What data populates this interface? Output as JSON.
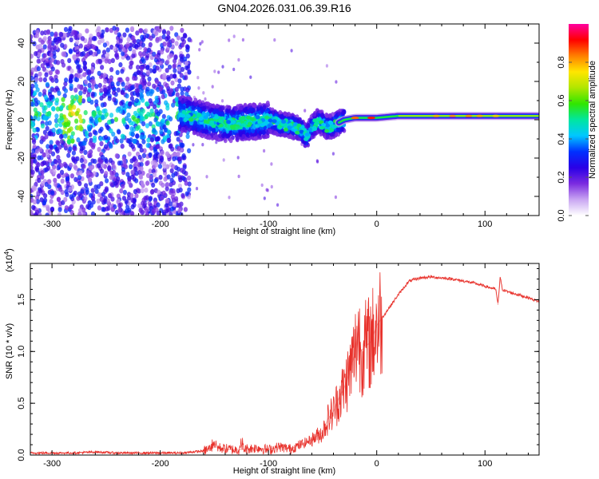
{
  "title": "GN04.2026.031.06.39.R16",
  "chart_data": [
    {
      "type": "heatmap",
      "name": "spectrogram",
      "title": "GN04.2026.031.06.39.R16",
      "xlabel": "Height of straight line (km)",
      "ylabel": "Frequency (Hz)",
      "xlim": [
        -320,
        150
      ],
      "ylim": [
        -50,
        50
      ],
      "x_ticks": [
        -300,
        -200,
        -100,
        0,
        100
      ],
      "x_tick_labels": [
        "-300",
        "-200",
        "-100",
        "0",
        "100"
      ],
      "y_ticks": [
        -40,
        -20,
        0,
        20,
        40
      ],
      "y_tick_labels": [
        "-40",
        "-20",
        "0",
        "20",
        "40"
      ],
      "ridge": {
        "description": "dominant frequency line of the signal, in Hz, vs height in km",
        "x": [
          -285,
          -270,
          -250,
          -230,
          -200,
          -180,
          -170,
          -160,
          -150,
          -140,
          -130,
          -120,
          -110,
          -100,
          -90,
          -80,
          -70,
          -65,
          -60,
          -55,
          -50,
          -45,
          -40,
          -30,
          -20,
          -10,
          0,
          20,
          40,
          60,
          80,
          100,
          120,
          150
        ],
        "y": [
          3,
          2,
          1,
          0,
          0,
          3,
          2,
          0,
          -1,
          -2,
          -2,
          -1,
          -1,
          0,
          -2,
          -3,
          -5,
          -9,
          -4,
          -1,
          -2,
          -4,
          -3,
          0,
          1,
          1,
          1,
          2,
          2,
          2,
          2,
          2,
          2,
          2
        ]
      },
      "colorbar": {
        "label": "Normalized spectral amplitude",
        "range": [
          0.0,
          1.0
        ],
        "ticks": [
          0.0,
          0.2,
          0.4,
          0.6,
          0.8
        ],
        "tick_labels": [
          "0.0",
          "0.2",
          "0.4",
          "0.6",
          "0.8"
        ],
        "colormap": [
          "#ffffff",
          "#c9a6f2",
          "#7b2be0",
          "#2a00e6",
          "#0030ff",
          "#00c8ff",
          "#00e6a0",
          "#30e600",
          "#b0e600",
          "#ffe600",
          "#ff8000",
          "#ff0000",
          "#ff00a0"
        ]
      }
    },
    {
      "type": "line",
      "name": "snr",
      "xlabel": "Height of straight line (km)",
      "ylabel": "SNR (10 * v/v)",
      "y_multiplier": "(x10",
      "y_multiplier_exponent": "4",
      "y_multiplier_close": ")",
      "xlim": [
        -320,
        150
      ],
      "ylim": [
        0,
        1.85
      ],
      "x_ticks": [
        -300,
        -200,
        -100,
        0,
        100
      ],
      "x_tick_labels": [
        "-300",
        "-200",
        "-100",
        "0",
        "100"
      ],
      "y_ticks": [
        0.0,
        0.5,
        1.0,
        1.5
      ],
      "y_tick_labels": [
        "0.0",
        "0.5",
        "1.0",
        "1.5"
      ],
      "color": "#e8302a",
      "series": [
        {
          "name": "SNR",
          "x": [
            -320,
            -300,
            -280,
            -260,
            -240,
            -220,
            -200,
            -180,
            -160,
            -150,
            -140,
            -130,
            -120,
            -110,
            -100,
            -90,
            -80,
            -70,
            -60,
            -50,
            -45,
            -40,
            -35,
            -30,
            -25,
            -20,
            -17,
            -15,
            -10,
            -5,
            0,
            10,
            20,
            30,
            40,
            50,
            60,
            70,
            80,
            90,
            100,
            110,
            112,
            114,
            116,
            120,
            130,
            140,
            150
          ],
          "y": [
            0.02,
            0.02,
            0.02,
            0.03,
            0.02,
            0.02,
            0.02,
            0.02,
            0.04,
            0.08,
            0.06,
            0.05,
            0.06,
            0.07,
            0.05,
            0.08,
            0.06,
            0.1,
            0.15,
            0.22,
            0.35,
            0.42,
            0.55,
            0.65,
            0.8,
            1.0,
            1.2,
            1.0,
            1.05,
            1.1,
            1.25,
            1.4,
            1.55,
            1.68,
            1.71,
            1.72,
            1.71,
            1.7,
            1.68,
            1.66,
            1.63,
            1.6,
            1.45,
            1.72,
            1.6,
            1.58,
            1.55,
            1.52,
            1.48
          ]
        }
      ]
    }
  ]
}
